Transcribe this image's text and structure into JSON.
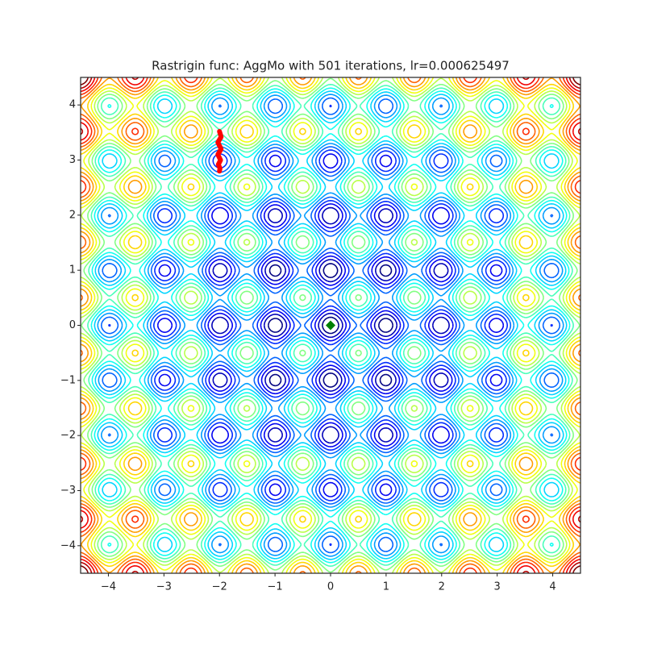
{
  "chart_data": {
    "type": "contour",
    "title": "Rastrigin func: AggMo with 501 iterations, lr=0.000625497",
    "colormap": "jet",
    "levels": [
      4,
      8,
      12,
      16,
      20,
      24,
      28,
      32,
      36,
      40,
      44,
      48,
      52,
      56,
      60,
      64,
      68,
      72,
      76
    ],
    "xlim": [
      -4.5,
      4.5
    ],
    "ylim": [
      -4.5,
      4.5
    ],
    "xticks": [
      {
        "value": -4,
        "label": "−4"
      },
      {
        "value": -3,
        "label": "−3"
      },
      {
        "value": -2,
        "label": "−2"
      },
      {
        "value": -1,
        "label": "−1"
      },
      0,
      1,
      2,
      3,
      4
    ],
    "yticks": [
      {
        "value": -4,
        "label": "−4"
      },
      {
        "value": -3,
        "label": "−3"
      },
      {
        "value": -2,
        "label": "−2"
      },
      {
        "value": -1,
        "label": "−1"
      },
      0,
      1,
      2,
      3,
      4
    ],
    "path": {
      "color": "#ff0000",
      "x": [
        -2.0,
        -1.97,
        -2.03,
        -1.97,
        -2.03,
        -1.98,
        -2.02,
        -1.99,
        -2.0
      ],
      "y": [
        3.52,
        3.42,
        3.32,
        3.2,
        3.1,
        3.0,
        2.92,
        2.85,
        2.8
      ]
    },
    "minimum": {
      "color": "#008000",
      "x": 0,
      "y": 0
    }
  }
}
